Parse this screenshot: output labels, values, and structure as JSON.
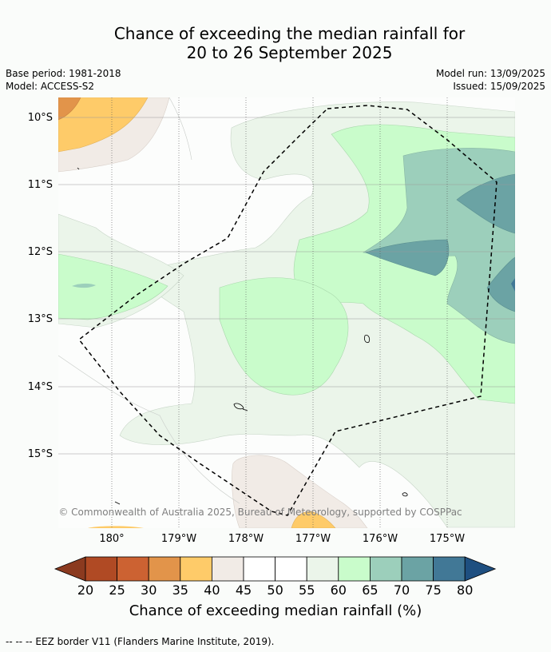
{
  "title": {
    "line1": "Chance of exceeding the median rainfall for",
    "line2": "20 to 26 September 2025"
  },
  "meta": {
    "base_period": "Base period: 1981-2018",
    "model": "Model: ACCESS-S2",
    "model_run": "Model run: 13/09/2025",
    "issued": "Issued: 15/09/2025"
  },
  "map": {
    "lat_labels": [
      "10°S",
      "11°S",
      "12°S",
      "13°S",
      "14°S",
      "15°S"
    ],
    "lon_labels": [
      "180°",
      "179°W",
      "178°W",
      "177°W",
      "176°W",
      "175°W"
    ],
    "copyright": "© Commonwealth of Australia 2025, Bureau of Meteorology, supported by COSPPac",
    "overlay": "EEZ border (dashed)"
  },
  "colorbar": {
    "ticks": [
      "20",
      "25",
      "30",
      "35",
      "40",
      "45",
      "50",
      "55",
      "60",
      "65",
      "70",
      "75",
      "80"
    ],
    "colors": [
      "#8b3a1f",
      "#b04a24",
      "#cc6232",
      "#e2944a",
      "#fecb69",
      "#f1ebe6",
      "#ffffff",
      "#ffffff",
      "#ebf5ea",
      "#c9fccb",
      "#9ccfbb",
      "#6ba3a4",
      "#417896",
      "#1e4f80"
    ],
    "label": "Chance of exceeding median rainfall (%)"
  },
  "footer": "--  --  -- EEZ border V11 (Flanders Marine Institute, 2019)."
}
